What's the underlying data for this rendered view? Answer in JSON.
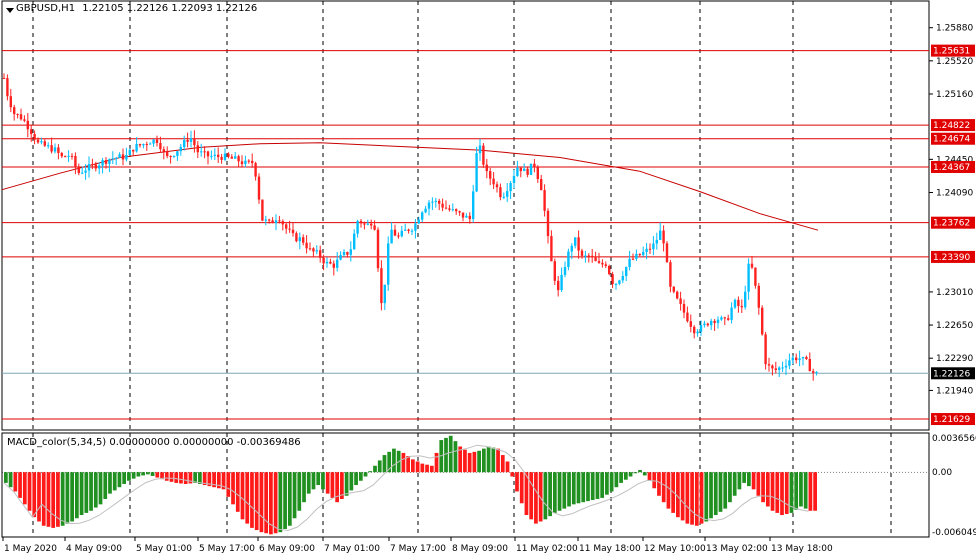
{
  "header": {
    "symbol_tf": "GBPUSD,H1",
    "ohlc": "1.22105 1.22126 1.22093 1.22126"
  },
  "macd_header": "MACD_color(5,34,5) 0.00000000 0.00000000 -0.00369486",
  "colors": {
    "background": "#ffffff",
    "grid": "#000000",
    "level_line": "#e00000",
    "bull": "#00bfff",
    "bear": "#ff2020",
    "ma": "#c80000",
    "hist_up": "#209020",
    "hist_down": "#ff1a1a",
    "signal": "#c0c0c0",
    "price_badge": "#000000",
    "level_badge": "#e00000"
  },
  "chart_data": {
    "type": "candlestick",
    "symbol": "GBPUSD",
    "timeframe": "H1",
    "price_axis_ticks": [
      "1.25880",
      "1.25520",
      "1.25160",
      "1.24450",
      "1.24090",
      "1.23010",
      "1.22650",
      "1.22290",
      "1.21940"
    ],
    "level_lines": [
      "1.25631",
      "1.24822",
      "1.24674",
      "1.24367",
      "1.23762",
      "1.23390",
      "1.21629"
    ],
    "current_price": "1.22126",
    "time_labels": [
      "1 May 2020",
      "4 May 09:00",
      "5 May 01:00",
      "5 May 17:00",
      "6 May 09:00",
      "7 May 01:00",
      "7 May 17:00",
      "8 May 09:00",
      "11 May 02:00",
      "11 May 18:00",
      "12 May 10:00",
      "13 May 02:00",
      "13 May 18:00"
    ],
    "ylim": [
      1.2151,
      1.2617
    ],
    "close_path": [
      [
        0,
        1.256
      ],
      [
        6,
        1.252
      ],
      [
        14,
        1.2495
      ],
      [
        22,
        1.249
      ],
      [
        30,
        1.2478
      ],
      [
        38,
        1.2462
      ],
      [
        46,
        1.2459
      ],
      [
        54,
        1.2456
      ],
      [
        62,
        1.2447
      ],
      [
        70,
        1.245
      ],
      [
        78,
        1.243
      ],
      [
        86,
        1.2435
      ],
      [
        94,
        1.2438
      ],
      [
        102,
        1.2442
      ],
      [
        110,
        1.2446
      ],
      [
        118,
        1.2447
      ],
      [
        126,
        1.2448
      ],
      [
        134,
        1.2458
      ],
      [
        142,
        1.2461
      ],
      [
        150,
        1.2465
      ],
      [
        158,
        1.2466
      ],
      [
        166,
        1.2446
      ],
      [
        174,
        1.2452
      ],
      [
        182,
        1.246
      ],
      [
        190,
        1.247
      ],
      [
        198,
        1.2453
      ],
      [
        206,
        1.2449
      ],
      [
        214,
        1.2448
      ],
      [
        222,
        1.2448
      ],
      [
        230,
        1.2446
      ],
      [
        238,
        1.2444
      ],
      [
        246,
        1.244
      ],
      [
        254,
        1.2442
      ],
      [
        262,
        1.238
      ],
      [
        270,
        1.2375
      ],
      [
        278,
        1.2384
      ],
      [
        286,
        1.237
      ],
      [
        294,
        1.236
      ],
      [
        302,
        1.2358
      ],
      [
        310,
        1.2346
      ],
      [
        318,
        1.2342
      ],
      [
        326,
        1.2332
      ],
      [
        334,
        1.233
      ],
      [
        342,
        1.234
      ],
      [
        350,
        1.2345
      ],
      [
        358,
        1.238
      ],
      [
        366,
        1.2372
      ],
      [
        374,
        1.238
      ],
      [
        382,
        1.228
      ],
      [
        390,
        1.237
      ],
      [
        398,
        1.236
      ],
      [
        406,
        1.2368
      ],
      [
        414,
        1.2372
      ],
      [
        422,
        1.239
      ],
      [
        430,
        1.24
      ],
      [
        438,
        1.2398
      ],
      [
        446,
        1.2392
      ],
      [
        454,
        1.2388
      ],
      [
        462,
        1.2384
      ],
      [
        470,
        1.238
      ],
      [
        478,
        1.2465
      ],
      [
        486,
        1.243
      ],
      [
        494,
        1.242
      ],
      [
        502,
        1.2404
      ],
      [
        510,
        1.242
      ],
      [
        518,
        1.2438
      ],
      [
        526,
        1.243
      ],
      [
        534,
        1.244
      ],
      [
        542,
        1.2412
      ],
      [
        550,
        1.234
      ],
      [
        558,
        1.23
      ],
      [
        566,
        1.2335
      ],
      [
        574,
        1.236
      ],
      [
        582,
        1.2338
      ],
      [
        590,
        1.234
      ],
      [
        598,
        1.233
      ],
      [
        606,
        1.2332
      ],
      [
        614,
        1.2308
      ],
      [
        622,
        1.232
      ],
      [
        630,
        1.2335
      ],
      [
        638,
        1.234
      ],
      [
        646,
        1.2345
      ],
      [
        654,
        1.2352
      ],
      [
        662,
        1.237
      ],
      [
        670,
        1.2305
      ],
      [
        678,
        1.229
      ],
      [
        686,
        1.2275
      ],
      [
        694,
        1.226
      ],
      [
        702,
        1.2262
      ],
      [
        710,
        1.227
      ],
      [
        718,
        1.2272
      ],
      [
        726,
        1.2268
      ],
      [
        734,
        1.229
      ],
      [
        742,
        1.2282
      ],
      [
        750,
        1.2338
      ],
      [
        758,
        1.229
      ],
      [
        766,
        1.2222
      ],
      [
        774,
        1.2215
      ],
      [
        782,
        1.222
      ],
      [
        790,
        1.2228
      ],
      [
        798,
        1.223
      ],
      [
        806,
        1.2225
      ],
      [
        814,
        1.2212
      ],
      [
        818,
        1.2212
      ]
    ],
    "ma_path": [
      [
        2,
        1.2412
      ],
      [
        60,
        1.243
      ],
      [
        120,
        1.2447
      ],
      [
        200,
        1.2458
      ],
      [
        260,
        1.2462
      ],
      [
        320,
        1.2463
      ],
      [
        400,
        1.2459
      ],
      [
        480,
        1.2455
      ],
      [
        560,
        1.2447
      ],
      [
        640,
        1.2432
      ],
      [
        700,
        1.241
      ],
      [
        760,
        1.2386
      ],
      [
        818,
        1.2368
      ]
    ],
    "macd": {
      "ylim": [
        -0.00605,
        0.00366
      ],
      "histogram": [
        -0.001,
        -0.0018,
        -0.003,
        -0.0042,
        -0.005,
        -0.0052,
        -0.005,
        -0.0046,
        -0.004,
        -0.0036,
        -0.003,
        -0.002,
        -0.0014,
        -0.0008,
        -0.0004,
        -0.0002,
        -0.0005,
        -0.0008,
        -0.001,
        -0.0011,
        -0.001,
        -0.0012,
        -0.0014,
        -0.0016,
        -0.003,
        -0.0044,
        -0.0052,
        -0.0056,
        -0.0058,
        -0.0056,
        -0.005,
        -0.0036,
        -0.002,
        -0.0012,
        -0.002,
        -0.0028,
        -0.0022,
        -0.0012,
        -0.0004,
        0.0006,
        0.0016,
        0.0022,
        0.0018,
        0.0012,
        0.0008,
        0.0006,
        0.003,
        0.0034,
        0.0024,
        0.0018,
        0.002,
        0.0024,
        0.0022,
        0.001,
        -0.0018,
        -0.004,
        -0.0048,
        -0.0044,
        -0.0038,
        -0.0034,
        -0.003,
        -0.0028,
        -0.0026,
        -0.0024,
        -0.0018,
        -0.001,
        -0.0004,
        0.0002,
        -0.0008,
        -0.0022,
        -0.0034,
        -0.0042,
        -0.0048,
        -0.005,
        -0.0046,
        -0.004,
        -0.0034,
        -0.0022,
        -0.001,
        -0.0016,
        -0.0028,
        -0.0036,
        -0.004,
        -0.0038,
        -0.0032,
        -0.0036
      ],
      "axis_labels": [
        "0.0036560",
        "0.00",
        "-0.006049"
      ]
    }
  }
}
